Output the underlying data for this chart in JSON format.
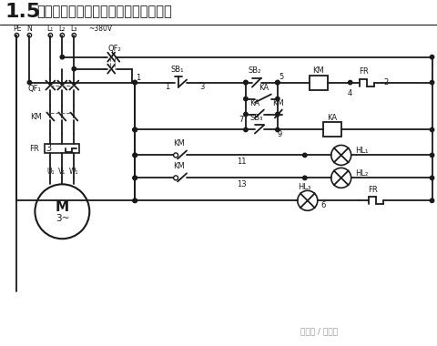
{
  "title_num": "1.5",
  "title_text": "单向启动、停止、点动控制电路（一）",
  "watermark": "头条号 / 电力鹰",
  "bg_color": "#ffffff",
  "lc": "#1a1a1a",
  "tc": "#1a1a1a",
  "gc": "#666666"
}
